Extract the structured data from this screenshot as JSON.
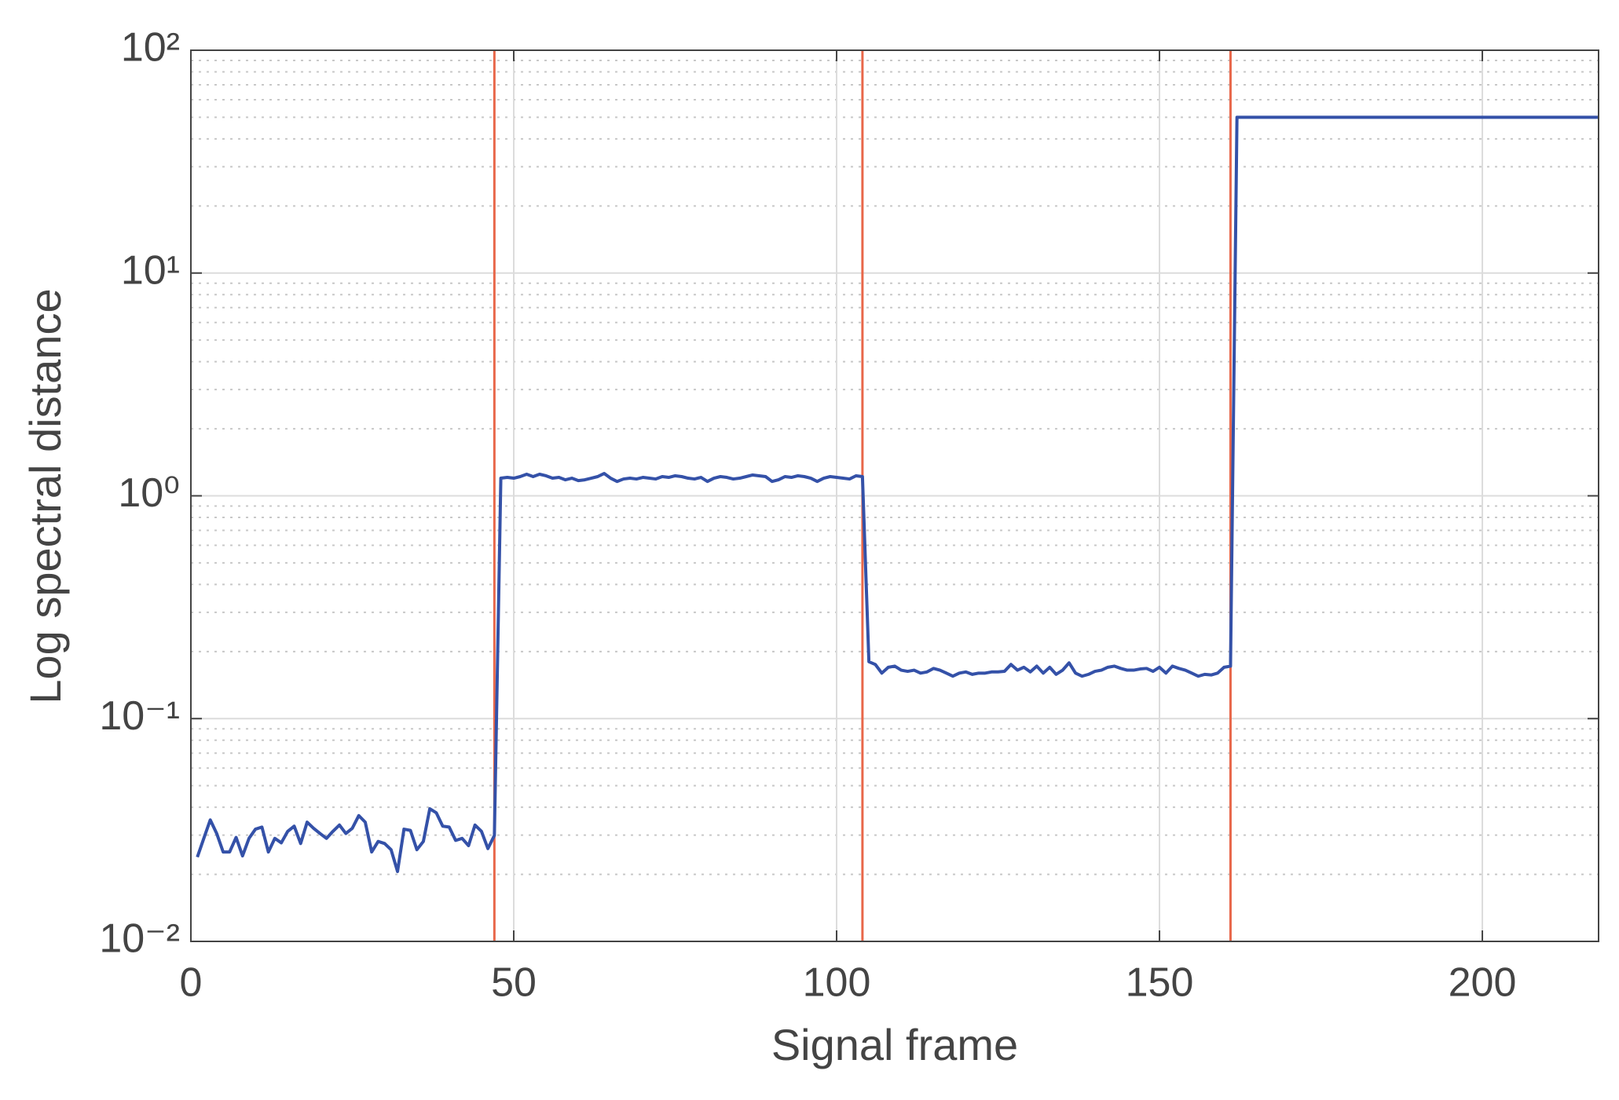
{
  "chart_data": {
    "type": "line",
    "xlabel": "Signal frame",
    "ylabel": "Log spectral distance",
    "x": [
      1,
      2,
      3,
      4,
      5,
      6,
      7,
      8,
      9,
      10,
      11,
      12,
      13,
      14,
      15,
      16,
      17,
      18,
      19,
      20,
      21,
      22,
      23,
      24,
      25,
      26,
      27,
      28,
      29,
      30,
      31,
      32,
      33,
      34,
      35,
      36,
      37,
      38,
      39,
      40,
      41,
      42,
      43,
      44,
      45,
      46,
      47,
      48,
      49,
      50,
      51,
      52,
      53,
      54,
      55,
      56,
      57,
      58,
      59,
      60,
      61,
      62,
      63,
      64,
      65,
      66,
      67,
      68,
      69,
      70,
      71,
      72,
      73,
      74,
      75,
      76,
      77,
      78,
      79,
      80,
      81,
      82,
      83,
      84,
      85,
      86,
      87,
      88,
      89,
      90,
      91,
      92,
      93,
      94,
      95,
      96,
      97,
      98,
      99,
      100,
      101,
      102,
      103,
      104,
      105,
      106,
      107,
      108,
      109,
      110,
      111,
      112,
      113,
      114,
      115,
      116,
      117,
      118,
      119,
      120,
      121,
      122,
      123,
      124,
      125,
      126,
      127,
      128,
      129,
      130,
      131,
      132,
      133,
      134,
      135,
      136,
      137,
      138,
      139,
      140,
      141,
      142,
      143,
      144,
      145,
      146,
      147,
      148,
      149,
      150,
      151,
      152,
      153,
      154,
      155,
      156,
      157,
      158,
      159,
      160,
      161,
      162,
      218
    ],
    "series": [
      {
        "color": "#3451a8",
        "values": [
          0.0239,
          0.029,
          0.0351,
          0.0305,
          0.0252,
          0.0252,
          0.0293,
          0.0242,
          0.029,
          0.0319,
          0.0326,
          0.0252,
          0.029,
          0.0277,
          0.0312,
          0.0329,
          0.0275,
          0.0343,
          0.0322,
          0.0305,
          0.029,
          0.0312,
          0.0333,
          0.0305,
          0.0322,
          0.0367,
          0.0343,
          0.0252,
          0.0281,
          0.0275,
          0.0258,
          0.0206,
          0.0319,
          0.0315,
          0.0258,
          0.0281,
          0.0394,
          0.0378,
          0.0329,
          0.0326,
          0.0284,
          0.029,
          0.0269,
          0.0333,
          0.0312,
          0.0261,
          0.0299,
          1.2,
          1.21,
          1.2,
          1.22,
          1.25,
          1.22,
          1.25,
          1.23,
          1.2,
          1.21,
          1.18,
          1.2,
          1.17,
          1.18,
          1.2,
          1.22,
          1.26,
          1.2,
          1.16,
          1.19,
          1.2,
          1.19,
          1.21,
          1.2,
          1.19,
          1.22,
          1.21,
          1.23,
          1.22,
          1.2,
          1.19,
          1.21,
          1.16,
          1.2,
          1.22,
          1.21,
          1.19,
          1.2,
          1.22,
          1.24,
          1.23,
          1.22,
          1.16,
          1.18,
          1.22,
          1.21,
          1.23,
          1.22,
          1.2,
          1.16,
          1.2,
          1.22,
          1.21,
          1.2,
          1.19,
          1.23,
          1.22,
          0.18,
          0.175,
          0.16,
          0.17,
          0.172,
          0.165,
          0.163,
          0.165,
          0.16,
          0.162,
          0.168,
          0.165,
          0.16,
          0.155,
          0.16,
          0.162,
          0.158,
          0.16,
          0.16,
          0.162,
          0.162,
          0.163,
          0.175,
          0.165,
          0.17,
          0.162,
          0.172,
          0.16,
          0.17,
          0.158,
          0.165,
          0.178,
          0.16,
          0.155,
          0.158,
          0.163,
          0.165,
          0.17,
          0.172,
          0.168,
          0.165,
          0.165,
          0.167,
          0.168,
          0.163,
          0.17,
          0.16,
          0.172,
          0.168,
          0.165,
          0.16,
          0.155,
          0.158,
          0.157,
          0.16,
          0.17,
          0.172,
          50,
          50
        ]
      }
    ],
    "vlines": {
      "x": [
        47,
        104,
        161
      ],
      "color": "#e8674a"
    },
    "xlim": [
      0,
      218
    ],
    "xticks": [
      0,
      50,
      100,
      150,
      200
    ],
    "ylim": [
      0.01,
      100
    ],
    "yscale": "log",
    "yticks": [
      {
        "value": 0.01,
        "label": "10⁻²"
      },
      {
        "value": 0.1,
        "label": "10⁻¹"
      },
      {
        "value": 1,
        "label": "10⁰"
      },
      {
        "value": 10,
        "label": "10¹"
      },
      {
        "value": 100,
        "label": "10²"
      }
    ],
    "grid": true,
    "minor_grid": true
  }
}
